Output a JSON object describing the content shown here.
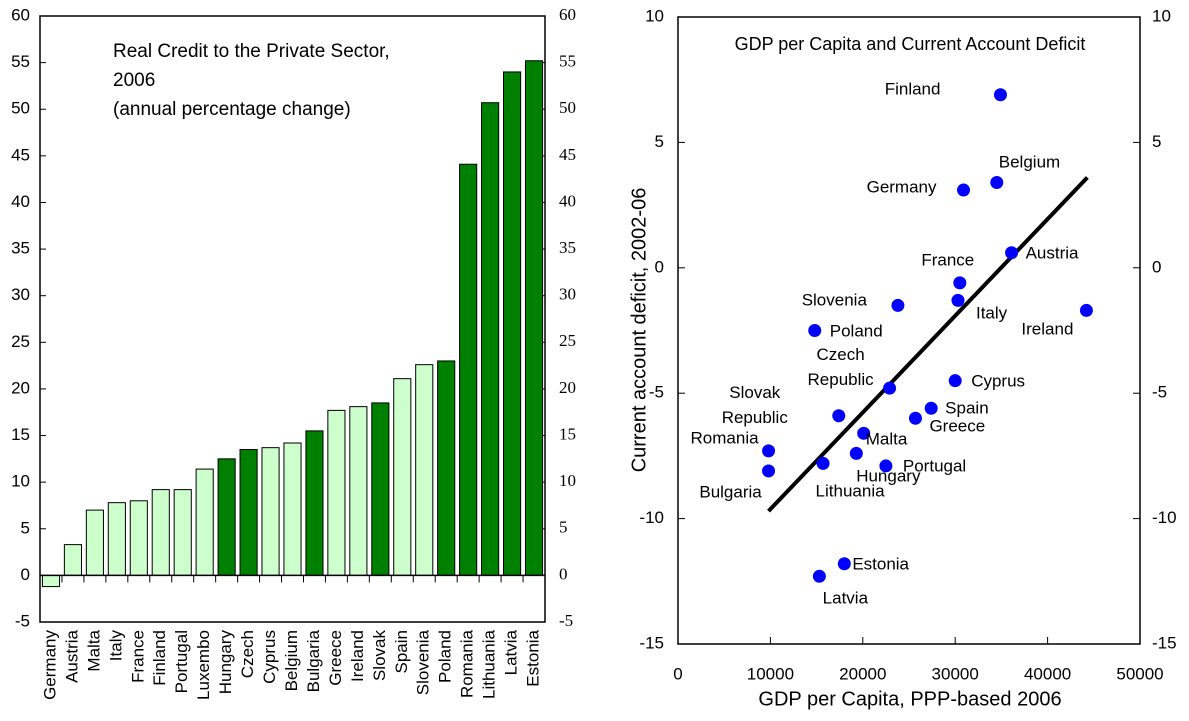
{
  "chart_data": [
    {
      "type": "bar",
      "title": "Real Credit to the Private Sector, 2006",
      "subtitle": "(annual percentage change)",
      "categories": [
        "Germany",
        "Austria",
        "Malta",
        "Italy",
        "France",
        "Finland",
        "Portugal",
        "Luxembo",
        "Hungary",
        "Czech",
        "Cyprus",
        "Belgium",
        "Bulgaria",
        "Greece",
        "Ireland",
        "Slovak",
        "Spain",
        "Slovenia",
        "Poland",
        "Romania",
        "Lithuania",
        "Latvia",
        "Estonia"
      ],
      "values": [
        -1.2,
        3.3,
        7.0,
        7.8,
        8.0,
        9.2,
        9.2,
        11.4,
        12.5,
        13.5,
        13.7,
        14.2,
        15.5,
        17.7,
        18.1,
        18.5,
        21.1,
        22.6,
        23.0,
        44.1,
        50.7,
        54.0,
        55.2
      ],
      "colors": [
        "#ccffcc",
        "#ccffcc",
        "#ccffcc",
        "#ccffcc",
        "#ccffcc",
        "#ccffcc",
        "#ccffcc",
        "#ccffcc",
        "#008000",
        "#008000",
        "#ccffcc",
        "#ccffcc",
        "#008000",
        "#ccffcc",
        "#ccffcc",
        "#008000",
        "#ccffcc",
        "#ccffcc",
        "#008000",
        "#008000",
        "#008000",
        "#008000",
        "#008000"
      ],
      "ylim": [
        -5,
        60
      ],
      "yticks": [
        -5,
        0,
        5,
        10,
        15,
        20,
        25,
        30,
        35,
        40,
        45,
        50,
        55,
        60
      ]
    },
    {
      "type": "scatter",
      "title": "GDP per Capita and Current Account Deficit",
      "xlabel": "GDP per Capita, PPP-based 2006",
      "ylabel": "Current account deficit, 2002-06",
      "labels": [
        "Finland",
        "Germany",
        "Belgium",
        "Austria",
        "France",
        "Italy",
        "Ireland",
        "Slovenia",
        "Poland",
        "Czech Republic",
        "Cyprus",
        "Spain",
        "Greece",
        "Slovak Republic",
        "Malta",
        "Hungary",
        "Portugal",
        "Lithuania",
        "Romania",
        "Bulgaria",
        "Estonia",
        "Latvia"
      ],
      "x": [
        34900,
        30900,
        34500,
        36100,
        30500,
        30300,
        44200,
        23800,
        14800,
        22900,
        30000,
        27400,
        25700,
        17400,
        20100,
        19300,
        22500,
        15700,
        9800,
        9800,
        18000,
        15300
      ],
      "y": [
        6.9,
        3.1,
        3.4,
        0.6,
        -0.6,
        -1.3,
        -1.7,
        -1.5,
        -2.5,
        -4.8,
        -4.5,
        -5.6,
        -6.0,
        -5.9,
        -6.6,
        -7.4,
        -7.9,
        -7.8,
        -7.3,
        -8.1,
        -11.8,
        -12.3
      ],
      "color": "#0000ff",
      "trendline": {
        "x": [
          9800,
          44300
        ],
        "y": [
          -9.7,
          3.6
        ],
        "color": "#000000"
      },
      "xlim": [
        0,
        50000
      ],
      "xticks": [
        0,
        10000,
        20000,
        30000,
        40000,
        50000
      ],
      "ylim": [
        -15,
        10
      ],
      "yticks": [
        -15,
        -10,
        -5,
        0,
        5,
        10
      ]
    }
  ]
}
